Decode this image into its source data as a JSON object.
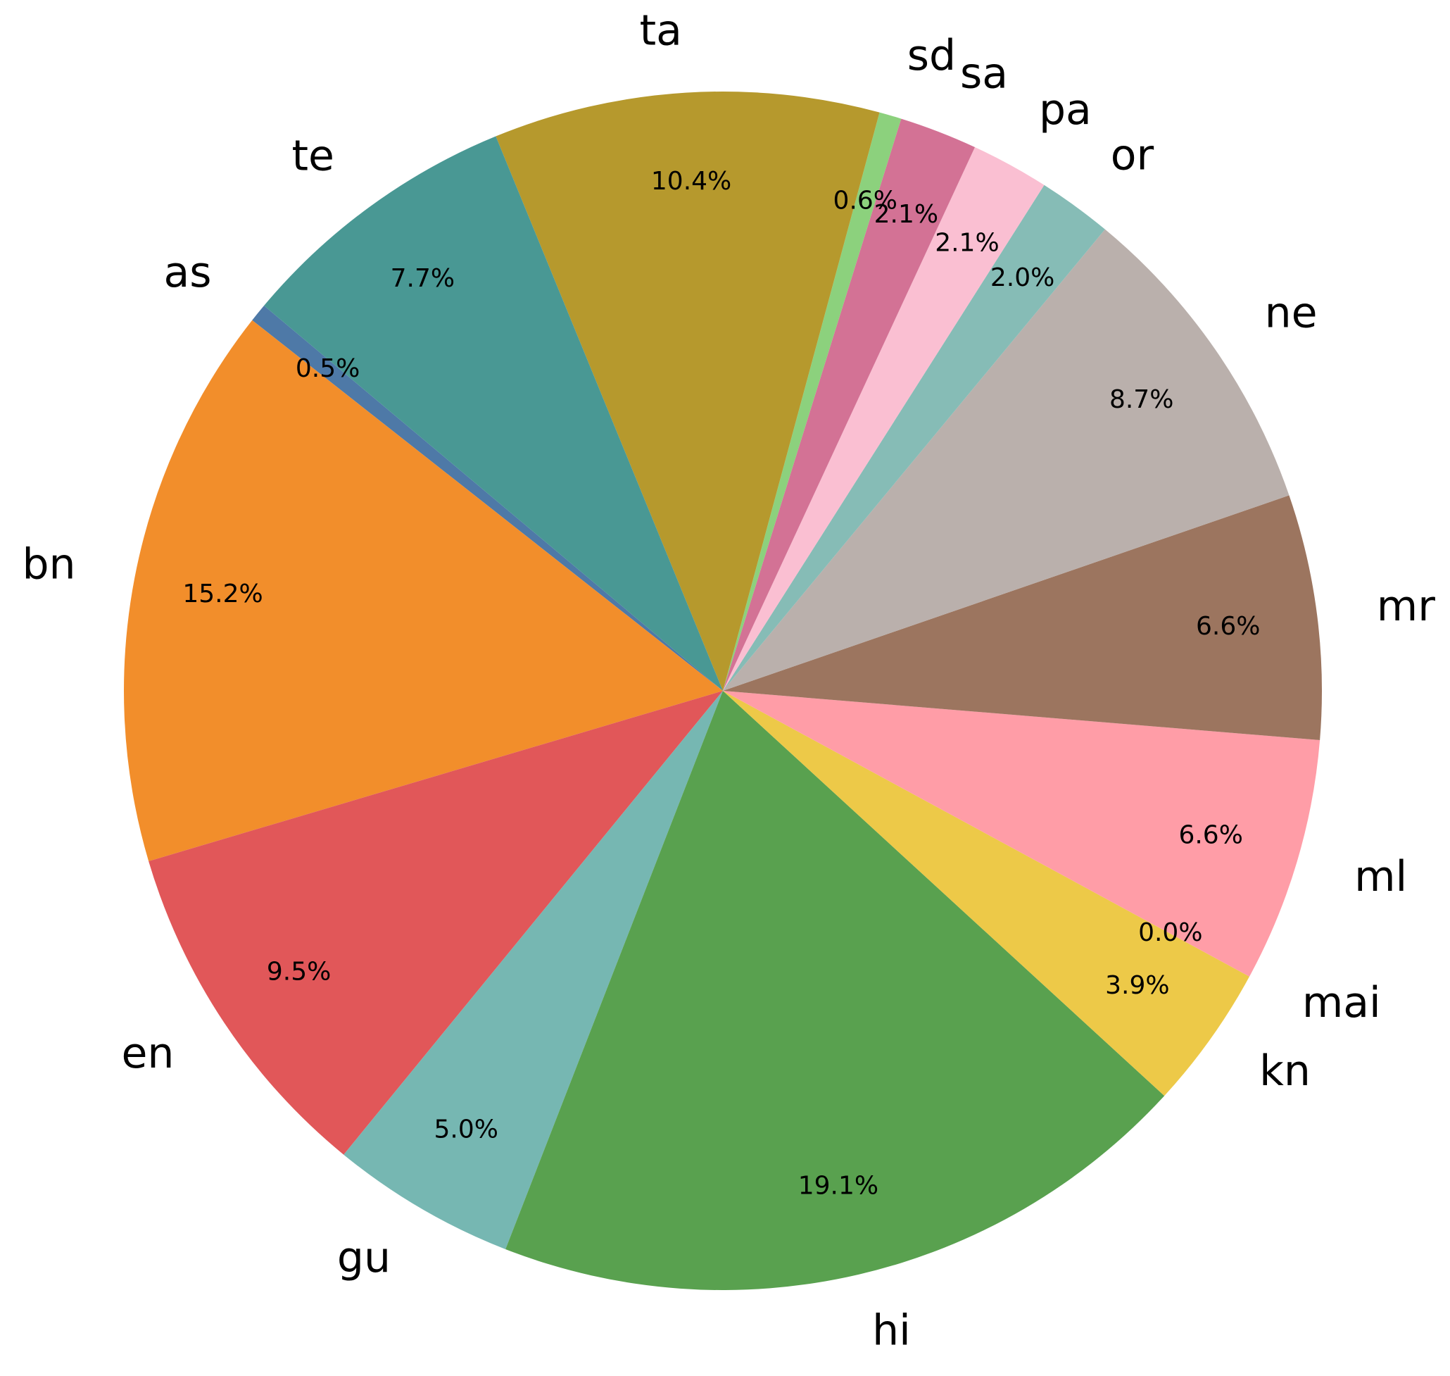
{
  "chart_data": {
    "type": "pie",
    "categories": [
      "as",
      "bn",
      "en",
      "gu",
      "hi",
      "kn",
      "mai",
      "ml",
      "mr",
      "ne",
      "or",
      "pa",
      "sa",
      "sd",
      "ta",
      "te"
    ],
    "values": [
      0.5,
      15.2,
      9.5,
      5.0,
      19.1,
      3.9,
      0.0,
      6.6,
      6.6,
      8.7,
      2.0,
      2.1,
      2.1,
      0.6,
      10.4,
      7.7
    ],
    "value_labels": [
      "0.5%",
      "15.2%",
      "9.5%",
      "5.0%",
      "19.1%",
      "3.9%",
      "0.0%",
      "6.6%",
      "6.6%",
      "8.7%",
      "2.0%",
      "2.1%",
      "2.1%",
      "0.6%",
      "10.4%",
      "7.7%"
    ],
    "colors": [
      "#4e79a7",
      "#f28e2b",
      "#e15759",
      "#76b7b2",
      "#59a14f",
      "#edc948",
      "#b07aa1",
      "#ff9da7",
      "#9c755f",
      "#bab0ac",
      "#86bcb6",
      "#fabfd2",
      "#d37295",
      "#8cd17d",
      "#b6992d",
      "#499894"
    ]
  }
}
